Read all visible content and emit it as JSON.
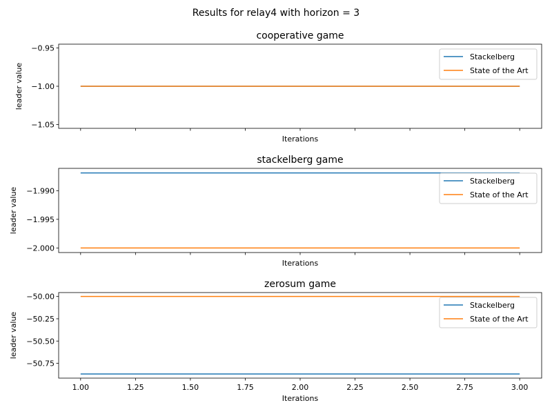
{
  "figure": {
    "suptitle": "Results for relay4 with horizon = 3"
  },
  "chart_data": [
    {
      "type": "line",
      "title": "cooperative game",
      "xlabel": "Iterations",
      "ylabel": "leader value",
      "xlim": [
        0.9,
        3.1
      ],
      "ylim": [
        -1.055,
        -0.945
      ],
      "xticks": [
        1.0,
        1.25,
        1.5,
        1.75,
        2.0,
        2.25,
        2.5,
        2.75,
        3.0
      ],
      "xtick_labels_shown": false,
      "yticks": [
        -0.95,
        -1.0,
        -1.05
      ],
      "ytick_labels": [
        "−0.95",
        "−1.00",
        "−1.05"
      ],
      "legend_position": "top-right",
      "series": [
        {
          "name": "Stackelberg",
          "color": "#1f77b4",
          "x": [
            1.0,
            3.0
          ],
          "y": [
            -1.0,
            -1.0
          ]
        },
        {
          "name": "State of the Art",
          "color": "#ff7f0e",
          "x": [
            1.0,
            3.0
          ],
          "y": [
            -1.0,
            -1.0
          ]
        }
      ]
    },
    {
      "type": "line",
      "title": "stackelberg game",
      "xlabel": "Iterations",
      "ylabel": "leader value",
      "xlim": [
        0.9,
        3.1
      ],
      "ylim": [
        -2.0008,
        -1.9861
      ],
      "xticks": [
        1.0,
        1.25,
        1.5,
        1.75,
        2.0,
        2.25,
        2.5,
        2.75,
        3.0
      ],
      "xtick_labels_shown": false,
      "yticks": [
        -1.99,
        -1.995,
        -2.0
      ],
      "ytick_labels": [
        "−1.990",
        "−1.995",
        "−2.000"
      ],
      "legend_position": "top-right",
      "series": [
        {
          "name": "Stackelberg",
          "color": "#1f77b4",
          "x": [
            1.0,
            3.0
          ],
          "y": [
            -1.9869,
            -1.9869
          ]
        },
        {
          "name": "State of the Art",
          "color": "#ff7f0e",
          "x": [
            1.0,
            3.0
          ],
          "y": [
            -2.0,
            -2.0
          ]
        }
      ]
    },
    {
      "type": "line",
      "title": "zerosum game",
      "xlabel": "Iterations",
      "ylabel": "leader value",
      "xlim": [
        0.9,
        3.1
      ],
      "ylim": [
        -50.916,
        -49.956
      ],
      "xticks": [
        1.0,
        1.25,
        1.5,
        1.75,
        2.0,
        2.25,
        2.5,
        2.75,
        3.0
      ],
      "xtick_labels": [
        "1.00",
        "1.25",
        "1.50",
        "1.75",
        "2.00",
        "2.25",
        "2.50",
        "2.75",
        "3.00"
      ],
      "xtick_labels_shown": true,
      "yticks": [
        -50.0,
        -50.25,
        -50.5,
        -50.75
      ],
      "ytick_labels": [
        "−50.00",
        "−50.25",
        "−50.50",
        "−50.75"
      ],
      "legend_position": "top-right",
      "series": [
        {
          "name": "Stackelberg",
          "color": "#1f77b4",
          "x": [
            1.0,
            3.0
          ],
          "y": [
            -50.87,
            -50.87
          ]
        },
        {
          "name": "State of the Art",
          "color": "#ff7f0e",
          "x": [
            1.0,
            3.0
          ],
          "y": [
            -50.0,
            -50.0
          ]
        }
      ]
    }
  ]
}
